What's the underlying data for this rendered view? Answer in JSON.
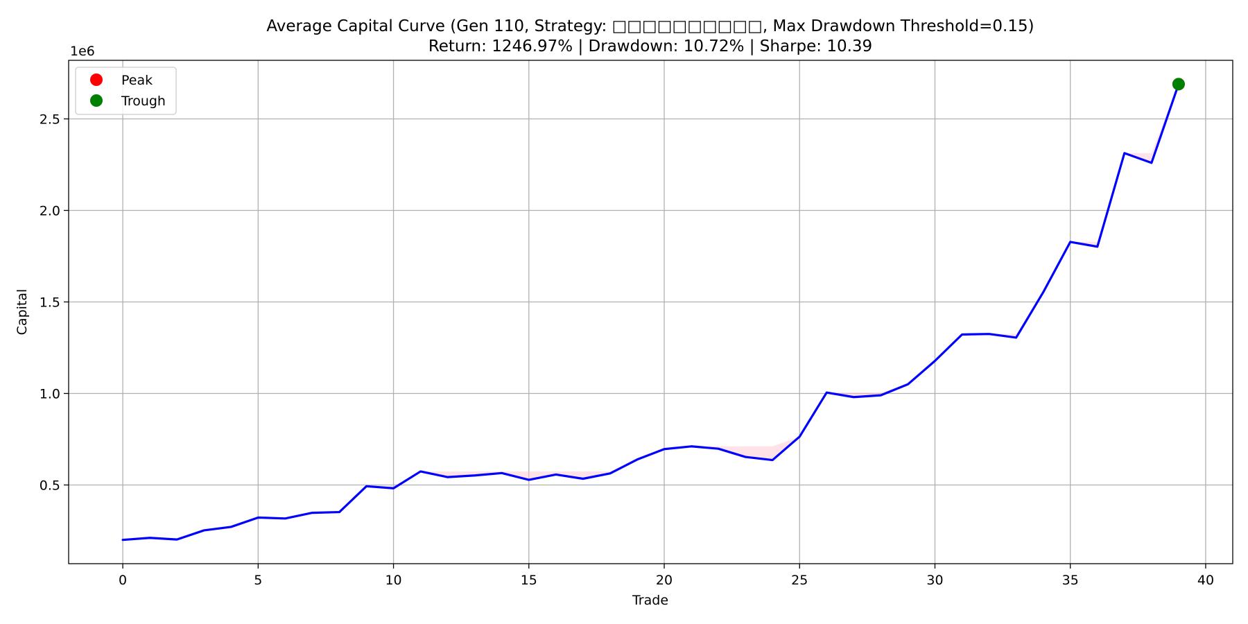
{
  "chart_data": {
    "type": "line",
    "title": "Average Capital Curve (Gen 110, Strategy: □□□□□□□□□□, Max Drawdown Threshold=0.15)",
    "subtitle": "Return: 1246.97% | Drawdown: 10.72% | Sharpe: 10.39",
    "xlabel": "Trade",
    "ylabel": "Capital",
    "y_offset_label": "1e6",
    "xlim": [
      -2,
      41
    ],
    "ylim": [
      0.07,
      2.82
    ],
    "y_scale_factor": 1000000,
    "x_ticks": [
      0,
      5,
      10,
      15,
      20,
      25,
      30,
      35,
      40
    ],
    "x_tick_labels": [
      "0",
      "5",
      "10",
      "15",
      "20",
      "25",
      "30",
      "35",
      "40"
    ],
    "y_ticks": [
      0.5,
      1.0,
      1.5,
      2.0,
      2.5
    ],
    "y_tick_labels": [
      "0.5",
      "1.0",
      "1.5",
      "2.0",
      "2.5"
    ],
    "grid": true,
    "legend_placement": "top-left",
    "series": [
      {
        "color": "#0000ff",
        "x": [
          0,
          1,
          2,
          3,
          4,
          5,
          6,
          7,
          8,
          9,
          10,
          11,
          12,
          13,
          14,
          15,
          16,
          17,
          18,
          19,
          20,
          21,
          22,
          23,
          24,
          25,
          26,
          27,
          28,
          29,
          30,
          31,
          32,
          33,
          34,
          35,
          36,
          37,
          38,
          39
        ],
        "values": [
          0.2,
          0.211,
          0.202,
          0.252,
          0.271,
          0.322,
          0.317,
          0.348,
          0.352,
          0.493,
          0.482,
          0.574,
          0.543,
          0.552,
          0.565,
          0.528,
          0.557,
          0.534,
          0.563,
          0.639,
          0.696,
          0.711,
          0.698,
          0.653,
          0.636,
          0.764,
          1.005,
          0.98,
          0.99,
          1.05,
          1.178,
          1.322,
          1.325,
          1.305,
          1.553,
          1.828,
          1.802,
          2.313,
          2.26,
          2.69
        ]
      }
    ],
    "drawdown_fill_color": "#ffc0cb",
    "markers": [
      {
        "name": "Peak",
        "color": "#ff0000",
        "x": 39,
        "y": 2.69
      },
      {
        "name": "Trough",
        "color": "#008000",
        "x": 39,
        "y": 2.69
      }
    ],
    "legend": [
      {
        "label": "Peak",
        "color": "#ff0000"
      },
      {
        "label": "Trough",
        "color": "#008000"
      }
    ]
  }
}
